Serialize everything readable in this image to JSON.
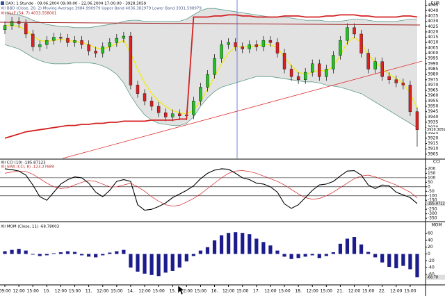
{
  "chart_data": [
    {
      "type": "candlestick",
      "title": "DAX; 1 Stunde - 09.06.2004 09:00:00 - 22.06.2004 17:00:00 - 3928.3059",
      "y_label": "EUR",
      "last_label": "3928.3059",
      "categories": [
        "09:00",
        null,
        "12:00",
        null,
        "15:00",
        null,
        "10.",
        null,
        "12:00",
        null,
        "15:00",
        null,
        "11.",
        null,
        "12:00",
        null,
        "15:00",
        null,
        "14.",
        null,
        "12:00",
        null,
        "15:00",
        null,
        "15.",
        null,
        "12:00",
        null,
        "15:00",
        null,
        "16.",
        null,
        "12:00",
        null,
        "15:00",
        null,
        "17.",
        null,
        "12:00",
        null,
        "15:00",
        null,
        "18.",
        null,
        "12:00",
        null,
        "15:00",
        null,
        "21.",
        null,
        "12:00",
        null,
        "15:00",
        null,
        "22.",
        null,
        "12:00",
        null,
        "15:00",
        null
      ],
      "up_color": "#22c022",
      "down_color": "#e02020",
      "open": [
        4022,
        4026,
        4030,
        4028,
        4018,
        4006,
        4008,
        4012,
        4015,
        4014,
        4010,
        4012,
        4008,
        4002,
        4000,
        4006,
        4010,
        4014,
        4016,
        3970,
        3962,
        3955,
        3950,
        3944,
        3940,
        3943,
        3941,
        3942,
        3955,
        3968,
        3980,
        3995,
        4008,
        4010,
        4006,
        4004,
        4008,
        4006,
        4012,
        4010,
        4000,
        3985,
        3978,
        3975,
        3982,
        3990,
        3978,
        3985,
        3998,
        4012,
        4024,
        4018,
        4000,
        3985,
        3992,
        3978,
        3975,
        3972,
        3970,
        3945
      ],
      "high": [
        4030,
        4034,
        4034,
        4032,
        4022,
        4012,
        4016,
        4019,
        4019,
        4018,
        4016,
        4016,
        4012,
        4006,
        4010,
        4014,
        4018,
        4020,
        4020,
        3974,
        3966,
        3959,
        3954,
        3948,
        3947,
        3947,
        3946,
        3959,
        3972,
        3984,
        3999,
        4012,
        4014,
        4014,
        4010,
        4012,
        4012,
        4016,
        4016,
        4014,
        4004,
        3989,
        3982,
        3986,
        3994,
        3994,
        3989,
        4002,
        4016,
        4028,
        4028,
        4022,
        4004,
        3996,
        3996,
        3982,
        3979,
        3976,
        3974,
        3949
      ],
      "low": [
        4018,
        4022,
        4024,
        4014,
        4002,
        4002,
        4004,
        4008,
        4010,
        4006,
        4006,
        4004,
        3998,
        3996,
        3996,
        4002,
        4006,
        4010,
        3966,
        3958,
        3951,
        3946,
        3940,
        3936,
        3936,
        3937,
        3937,
        3938,
        3951,
        3964,
        3976,
        3991,
        4004,
        4002,
        4000,
        4000,
        4002,
        4002,
        4006,
        3996,
        3981,
        3974,
        3971,
        3971,
        3978,
        3974,
        3974,
        3981,
        3994,
        4008,
        4014,
        3996,
        3981,
        3981,
        3974,
        3971,
        3968,
        3966,
        3941,
        3912
      ],
      "close": [
        4026,
        4030,
        4028,
        4018,
        4006,
        4008,
        4012,
        4015,
        4014,
        4010,
        4012,
        4008,
        4002,
        4000,
        4006,
        4010,
        4014,
        4016,
        3970,
        3962,
        3955,
        3950,
        3944,
        3940,
        3943,
        3941,
        3942,
        3955,
        3968,
        3980,
        3995,
        4008,
        4010,
        4006,
        4004,
        4008,
        4006,
        4012,
        4010,
        4000,
        3985,
        3978,
        3975,
        3982,
        3990,
        3978,
        3985,
        3998,
        4012,
        4024,
        4018,
        4000,
        3985,
        3992,
        3978,
        3975,
        3972,
        3970,
        3945,
        3928
      ],
      "bands": {
        "name": "XII BBD (Close, 20, 2) Moving Average 3984.990979 Upper Band 4036.382979 Lower Band 3931.598979",
        "fill_color": "#e2e2e2",
        "color": "#5c9c8c",
        "middle_color": "#f2ea1c",
        "upper": [
          4038,
          4037,
          4036,
          4034,
          4031,
          4029,
          4027,
          4026,
          4025,
          4025,
          4024,
          4024,
          4024,
          4025,
          4026,
          4027,
          4028,
          4030,
          4031,
          4031,
          4030,
          4030,
          4030,
          4030,
          4030,
          4030,
          4032,
          4036,
          4040,
          4042,
          4042,
          4041,
          4040,
          4039,
          4038,
          4037,
          4036,
          4035,
          4034,
          4034,
          4034,
          4033,
          4032,
          4031,
          4031,
          4031,
          4030,
          4030,
          4030,
          4031,
          4032,
          4032,
          4031,
          4030,
          4030,
          4030,
          4030,
          4031,
          4032,
          4032
        ],
        "middle": [
          4026,
          4026,
          4025,
          4022,
          4016,
          4012,
          4011,
          4012,
          4013,
          4012,
          4011,
          4010,
          4008,
          4005,
          4004,
          4006,
          4009,
          4012,
          4000,
          3985,
          3972,
          3962,
          3955,
          3950,
          3946,
          3944,
          3943,
          3946,
          3955,
          3966,
          3978,
          3990,
          4000,
          4006,
          4006,
          4006,
          4007,
          4008,
          4008,
          4005,
          3996,
          3988,
          3982,
          3980,
          3982,
          3984,
          3983,
          3988,
          3998,
          4010,
          4015,
          4010,
          3998,
          3992,
          3986,
          3980,
          3976,
          3972,
          3962,
          3948
        ],
        "lower": [
          4008,
          4006,
          4004,
          4000,
          3996,
          3993,
          3991,
          3990,
          3990,
          3990,
          3991,
          3991,
          3991,
          3990,
          3988,
          3985,
          3980,
          3972,
          3960,
          3950,
          3942,
          3937,
          3934,
          3933,
          3932,
          3932,
          3934,
          3940,
          3950,
          3958,
          3964,
          3968,
          3970,
          3972,
          3974,
          3976,
          3978,
          3978,
          3978,
          3977,
          3976,
          3975,
          3974,
          3973,
          3973,
          3972,
          3970,
          3969,
          3968,
          3966,
          3964,
          3962,
          3958,
          3954,
          3950,
          3946,
          3942,
          3938,
          3934,
          3930
        ]
      },
      "series": [
        {
          "name": "XII VLLF (54, 7) 4033.558001",
          "color": "#d42020",
          "values": [
            3920,
            3922,
            3924,
            3926,
            3927,
            3928,
            3929,
            3930,
            3931,
            3932,
            3932,
            3933,
            3933,
            3934,
            3934,
            3935,
            3935,
            3936,
            3936,
            3936,
            3936,
            3937,
            3937,
            3937,
            3937,
            3938,
            3938,
            4034,
            4034,
            4034,
            4035,
            4035,
            4036,
            4036,
            4035,
            4035,
            4034,
            4034,
            4034,
            4034,
            4035,
            4035,
            4035,
            4034,
            4034,
            4034,
            4035,
            4035,
            4036,
            4036,
            4036,
            4035,
            4035,
            4034,
            4034,
            4034,
            4034,
            4035,
            4035,
            4034
          ]
        }
      ],
      "ylim": [
        3901,
        4050
      ],
      "yticks": [
        4045,
        4040,
        4035,
        4030,
        4025,
        4020,
        4015,
        4010,
        4005,
        4000,
        3995,
        3990,
        3985,
        3980,
        3975,
        3970,
        3965,
        3960,
        3955,
        3950,
        3945,
        3940,
        3935,
        3930,
        3925,
        3920,
        3915,
        3910,
        3905
      ]
    },
    {
      "type": "line",
      "y_label": "CCI",
      "last_label": "-185.87123",
      "series": [
        {
          "name": "XII CCI (10) -185.87123",
          "color": "#000000",
          "values": [
            200,
            190,
            175,
            130,
            20,
            -110,
            -150,
            -60,
            30,
            80,
            110,
            100,
            40,
            -60,
            -110,
            -40,
            60,
            80,
            60,
            -200,
            -260,
            -250,
            -220,
            -180,
            -120,
            -80,
            -40,
            10,
            90,
            150,
            185,
            200,
            195,
            150,
            100,
            80,
            40,
            30,
            0,
            -60,
            -190,
            -240,
            -200,
            -120,
            -40,
            20,
            30,
            60,
            120,
            175,
            180,
            130,
            20,
            -20,
            20,
            10,
            -60,
            -90,
            -120,
            -186
          ]
        },
        {
          "name": "XII SMA (CCI, 8) -123.27689",
          "color": "#d42020",
          "values": [
            150,
            165,
            175,
            170,
            140,
            90,
            40,
            0,
            -20,
            -10,
            20,
            50,
            70,
            60,
            30,
            0,
            0,
            20,
            40,
            0,
            -50,
            -110,
            -160,
            -200,
            -215,
            -205,
            -170,
            -130,
            -80,
            -20,
            40,
            100,
            150,
            175,
            180,
            170,
            150,
            120,
            90,
            60,
            20,
            -30,
            -80,
            -120,
            -140,
            -130,
            -100,
            -60,
            -10,
            40,
            90,
            120,
            130,
            110,
            80,
            50,
            20,
            -20,
            -60,
            -123
          ]
        }
      ],
      "hlines": [
        100,
        0,
        -100
      ],
      "ylim": [
        -380,
        300
      ],
      "yticks": [
        200,
        150,
        100,
        50,
        0,
        -50,
        -100,
        -150,
        -200,
        -250,
        -300,
        -350
      ]
    },
    {
      "type": "bar",
      "y_label": "MOM",
      "last_label": "-68.78",
      "series": [
        {
          "name": "XII MOM (Close, 11) -68.78003",
          "color": "#1c1c8c",
          "values": [
            8,
            12,
            15,
            10,
            -2,
            -6,
            -4,
            2,
            5,
            8,
            6,
            -4,
            -8,
            -10,
            -4,
            4,
            8,
            12,
            -40,
            -52,
            -58,
            -62,
            -65,
            -55,
            -50,
            -40,
            -22,
            -6,
            10,
            20,
            40,
            55,
            62,
            64,
            62,
            58,
            45,
            35,
            25,
            10,
            -8,
            -15,
            -12,
            -8,
            -4,
            -12,
            -6,
            5,
            30,
            45,
            50,
            28,
            6,
            -10,
            -25,
            -38,
            -42,
            -35,
            -45,
            -68.78
          ]
        }
      ],
      "ylim": [
        -91,
        93
      ],
      "yticks": [
        60,
        40,
        20,
        0,
        -20,
        -40,
        -60
      ]
    }
  ]
}
